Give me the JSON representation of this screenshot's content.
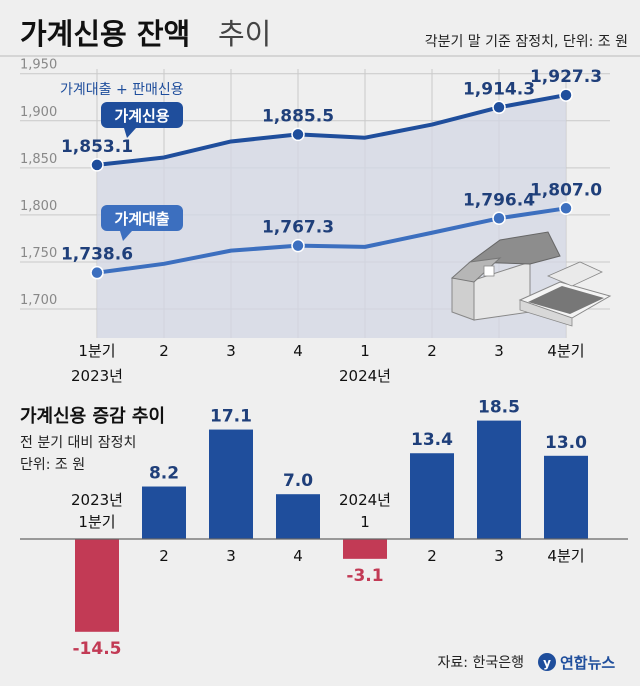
{
  "title_bold": "가계신용 잔액",
  "title_light": "추이",
  "subtitle": "각분기 말 기준 잠정치, 단위: 조 원",
  "source": "자료: 한국은행",
  "logo_text": "연합뉴스",
  "colors": {
    "dark_blue": "#1f4e9c",
    "mid_blue": "#3c6fbf",
    "red": "#c23a55",
    "area": "#d3d7e4",
    "background": "#efefef"
  },
  "chart_data": [
    {
      "type": "line",
      "title": "",
      "x": [
        "1분기",
        "2",
        "3",
        "4",
        "1",
        "2",
        "3",
        "4분기"
      ],
      "year_labels": [
        "2023년",
        "2024년"
      ],
      "ylim": [
        1680,
        1955
      ],
      "yticks": [
        "1,950",
        "1,900",
        "1,850",
        "1,800",
        "1,750",
        "1,700"
      ],
      "grid": true,
      "note": "가계대출 + 판매신용",
      "series": [
        {
          "name": "가계신용",
          "values": [
            1853.1,
            1861.0,
            1878.0,
            1885.5,
            1882.0,
            1896.0,
            1914.3,
            1927.3
          ],
          "labels": [
            "1,853.1",
            "",
            "",
            "1,885.5",
            "",
            "",
            "1,914.3",
            "1,927.3"
          ]
        },
        {
          "name": "가계대출",
          "values": [
            1738.6,
            1748.0,
            1762.0,
            1767.3,
            1766.0,
            1781.0,
            1796.4,
            1807.0
          ],
          "labels": [
            "1,738.6",
            "",
            "",
            "1,767.3",
            "",
            "",
            "1,796.4",
            "1,807.0"
          ]
        }
      ]
    },
    {
      "type": "bar",
      "title": "가계신용 증감 추이",
      "subtitle_lines": [
        "전 분기 대비 잠정치",
        "단위: 조 원"
      ],
      "categories": [
        "2023년 1분기",
        "2",
        "3",
        "4",
        "2024년 1",
        "2",
        "3",
        "4분기"
      ],
      "category_lines": [
        [
          "2023년",
          "1분기"
        ],
        [
          "2"
        ],
        [
          "3"
        ],
        [
          "4"
        ],
        [
          "2024년",
          "1"
        ],
        [
          "2"
        ],
        [
          "3"
        ],
        [
          "4분기"
        ]
      ],
      "values": [
        -14.5,
        8.2,
        17.1,
        7.0,
        -3.1,
        13.4,
        18.5,
        13.0
      ],
      "value_labels": [
        "-14.5",
        "8.2",
        "17.1",
        "7.0",
        "-3.1",
        "13.4",
        "18.5",
        "13.0"
      ]
    }
  ]
}
